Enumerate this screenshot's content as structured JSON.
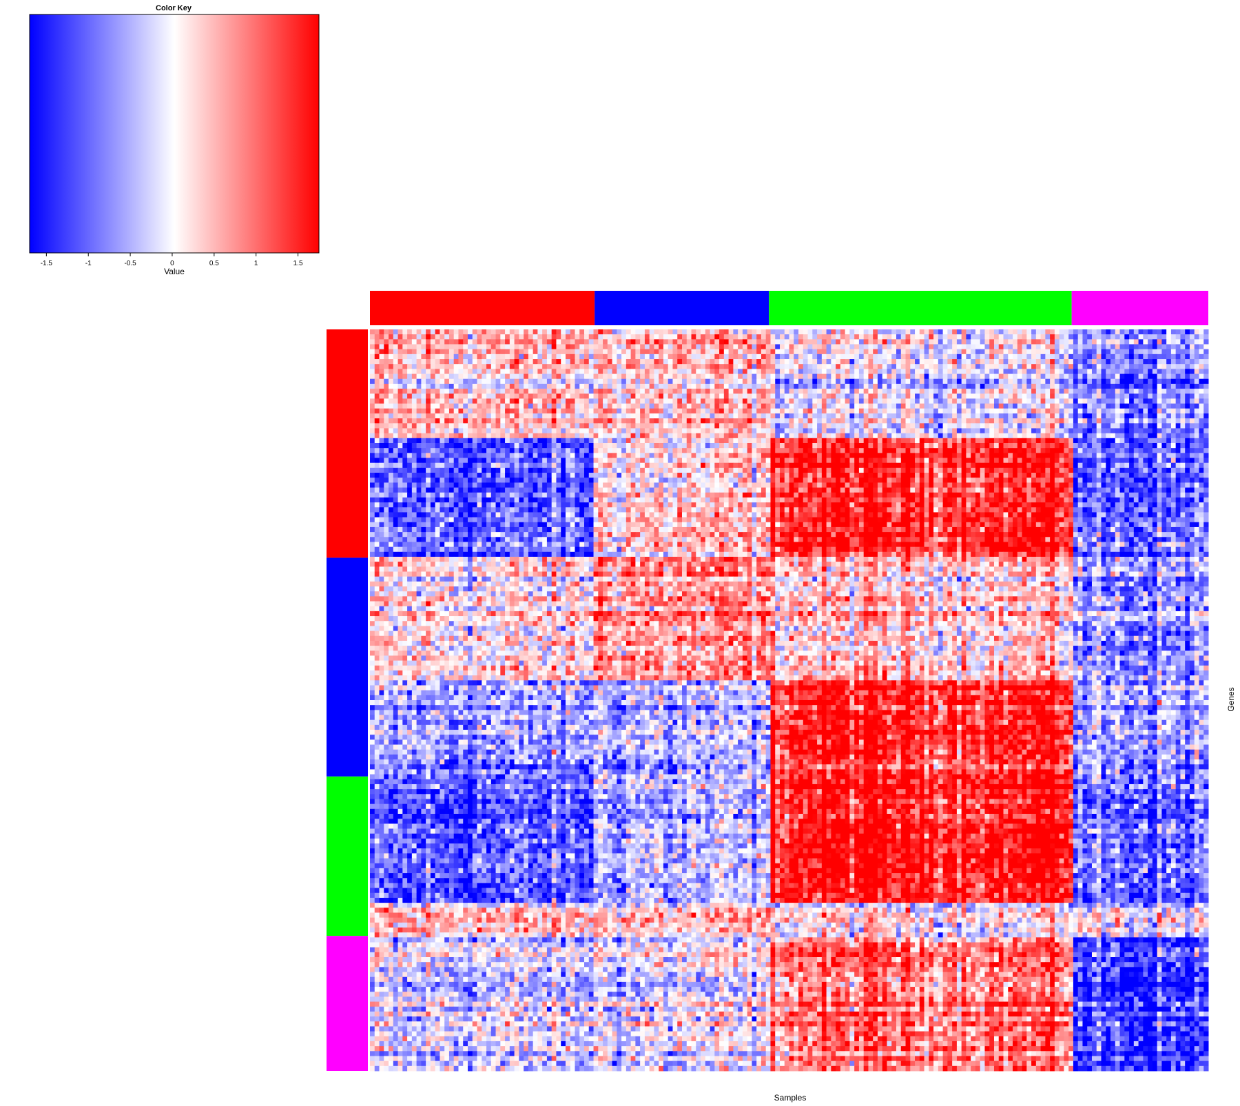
{
  "chart_data": {
    "type": "heatmap",
    "color_key": {
      "title": "Color Key",
      "xlabel": "Value",
      "range": [
        -1.7,
        1.75
      ],
      "ticks": [
        -1.5,
        -1,
        -0.5,
        0,
        0.5,
        1,
        1.5
      ],
      "tick_labels": [
        "-1.5",
        "-1",
        "-0.5",
        "0",
        "0.5",
        "1",
        "1.5"
      ],
      "colors": {
        "low": "#0000ff",
        "mid": "#ffffff",
        "high": "#ff0000"
      }
    },
    "xlabel": "Samples",
    "ylabel": "Genes",
    "column_groups": [
      {
        "color": "#ff0000",
        "fraction": 0.268
      },
      {
        "color": "#0000ff",
        "fraction": 0.208
      },
      {
        "color": "#00ff00",
        "fraction": 0.361
      },
      {
        "color": "#ff00ff",
        "fraction": 0.163
      }
    ],
    "row_groups": [
      {
        "color": "#ff0000",
        "fraction": 0.308
      },
      {
        "color": "#0000ff",
        "fraction": 0.295
      },
      {
        "color": "#00ff00",
        "fraction": 0.215
      },
      {
        "color": "#ff00ff",
        "fraction": 0.182
      }
    ],
    "block_mean_values": [
      [
        0.3,
        0.3,
        -0.1,
        -0.7
      ],
      [
        -1.0,
        0.2,
        1.3,
        -0.9
      ],
      [
        0.1,
        0.6,
        0.3,
        -0.6
      ],
      [
        -0.6,
        -0.5,
        1.3,
        -0.6
      ],
      [
        -1.0,
        -0.4,
        1.5,
        -0.8
      ],
      [
        0.3,
        0.3,
        0.1,
        -0.1
      ],
      [
        -0.2,
        -0.1,
        0.9,
        -1.1
      ]
    ],
    "block_row_fractions": [
      0.145,
      0.163,
      0.162,
      0.133,
      0.167,
      0.048,
      0.182
    ]
  }
}
